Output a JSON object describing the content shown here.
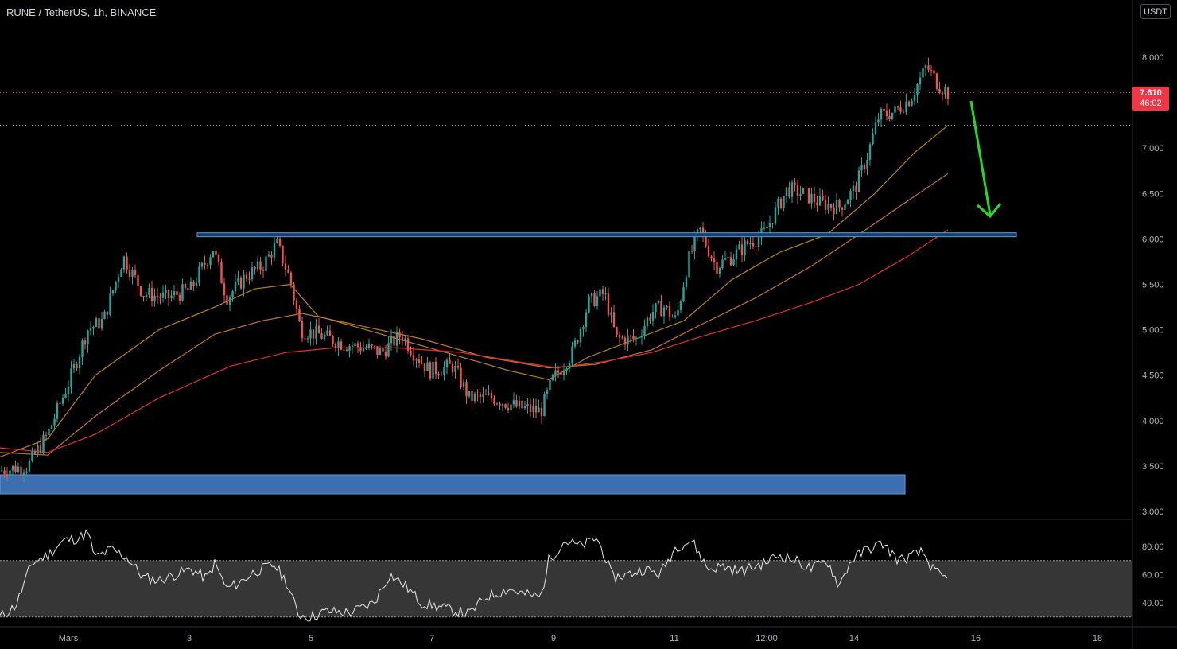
{
  "header": {
    "symbol_title": "RUNE / TetherUS, 1h, BINANCE"
  },
  "currency_badge": "USDT",
  "last_price": {
    "price": "7.610",
    "countdown": "46:02",
    "color": "#f23645"
  },
  "colors": {
    "background": "#000000",
    "up": "#26a69a",
    "down": "#ef5350",
    "ma_fast": "#b8860b",
    "ma_mid": "#c0792a",
    "ma_slow": "#e03030",
    "zone": "#3d6fb0",
    "resistance": "#5b9bd5",
    "arrow": "#22dd22",
    "rsi_band": "#363636"
  },
  "chart_data": [
    {
      "type": "candlestick",
      "title": "RUNE / TetherUS, 1h, BINANCE",
      "x_tick_labels": [
        "Mars",
        "3",
        "5",
        "7",
        "9",
        "11",
        "12:00",
        "14",
        "16",
        "18"
      ],
      "y_tick_labels": [
        "8.000",
        "7.500",
        "7.000",
        "6.500",
        "6.000",
        "5.500",
        "5.000",
        "4.500",
        "4.000",
        "3.500",
        "3.000"
      ],
      "ylim": [
        3.0,
        8.0
      ],
      "price_path": [
        [
          0,
          3.45
        ],
        [
          35,
          3.5
        ],
        [
          60,
          3.85
        ],
        [
          90,
          4.5
        ],
        [
          110,
          5.0
        ],
        [
          130,
          5.1
        ],
        [
          155,
          5.8
        ],
        [
          180,
          5.4
        ],
        [
          210,
          5.35
        ],
        [
          240,
          5.45
        ],
        [
          268,
          5.9
        ],
        [
          285,
          5.35
        ],
        [
          310,
          5.6
        ],
        [
          330,
          5.7
        ],
        [
          348,
          5.95
        ],
        [
          365,
          5.55
        ],
        [
          378,
          5.0
        ],
        [
          400,
          4.95
        ],
        [
          430,
          4.85
        ],
        [
          460,
          4.8
        ],
        [
          480,
          4.75
        ],
        [
          505,
          4.95
        ],
        [
          520,
          4.75
        ],
        [
          540,
          4.55
        ],
        [
          570,
          4.6
        ],
        [
          590,
          4.25
        ],
        [
          620,
          4.25
        ],
        [
          650,
          4.15
        ],
        [
          680,
          4.1
        ],
        [
          695,
          4.45
        ],
        [
          720,
          4.75
        ],
        [
          740,
          5.3
        ],
        [
          760,
          5.4
        ],
        [
          775,
          4.9
        ],
        [
          800,
          4.9
        ],
        [
          820,
          5.2
        ],
        [
          835,
          5.25
        ],
        [
          850,
          5.1
        ],
        [
          865,
          5.75
        ],
        [
          880,
          6.1
        ],
        [
          900,
          5.7
        ],
        [
          920,
          5.8
        ],
        [
          940,
          5.95
        ],
        [
          960,
          6.05
        ],
        [
          975,
          6.3
        ],
        [
          990,
          6.55
        ],
        [
          1010,
          6.5
        ],
        [
          1030,
          6.4
        ],
        [
          1055,
          6.35
        ],
        [
          1075,
          6.55
        ],
        [
          1090,
          6.9
        ],
        [
          1105,
          7.35
        ],
        [
          1125,
          7.4
        ],
        [
          1145,
          7.55
        ],
        [
          1165,
          7.9
        ],
        [
          1180,
          7.7
        ],
        [
          1192,
          7.61
        ]
      ],
      "moving_averages": [
        {
          "name": "MA fast",
          "color": "#b8860b",
          "points": [
            [
              0,
              3.6
            ],
            [
              60,
              3.8
            ],
            [
              120,
              4.5
            ],
            [
              200,
              5.0
            ],
            [
              270,
              5.25
            ],
            [
              320,
              5.45
            ],
            [
              365,
              5.5
            ],
            [
              400,
              5.15
            ],
            [
              480,
              4.95
            ],
            [
              560,
              4.75
            ],
            [
              640,
              4.55
            ],
            [
              690,
              4.45
            ],
            [
              740,
              4.7
            ],
            [
              800,
              4.9
            ],
            [
              860,
              5.1
            ],
            [
              920,
              5.55
            ],
            [
              980,
              5.85
            ],
            [
              1040,
              6.05
            ],
            [
              1100,
              6.5
            ],
            [
              1150,
              6.95
            ],
            [
              1192,
              7.25
            ]
          ]
        },
        {
          "name": "MA mid",
          "color": "#c0792a",
          "points": [
            [
              0,
              3.65
            ],
            [
              60,
              3.62
            ],
            [
              120,
              4.05
            ],
            [
              200,
              4.55
            ],
            [
              270,
              4.95
            ],
            [
              330,
              5.1
            ],
            [
              380,
              5.18
            ],
            [
              450,
              5.05
            ],
            [
              530,
              4.9
            ],
            [
              610,
              4.7
            ],
            [
              690,
              4.58
            ],
            [
              750,
              4.62
            ],
            [
              820,
              4.78
            ],
            [
              880,
              5.05
            ],
            [
              950,
              5.35
            ],
            [
              1020,
              5.7
            ],
            [
              1080,
              6.05
            ],
            [
              1130,
              6.35
            ],
            [
              1192,
              6.72
            ]
          ]
        },
        {
          "name": "MA slow",
          "color": "#e03030",
          "points": [
            [
              0,
              3.7
            ],
            [
              60,
              3.65
            ],
            [
              120,
              3.85
            ],
            [
              200,
              4.25
            ],
            [
              290,
              4.6
            ],
            [
              360,
              4.75
            ],
            [
              420,
              4.8
            ],
            [
              500,
              4.8
            ],
            [
              580,
              4.75
            ],
            [
              650,
              4.65
            ],
            [
              700,
              4.58
            ],
            [
              760,
              4.65
            ],
            [
              820,
              4.75
            ],
            [
              880,
              4.92
            ],
            [
              950,
              5.1
            ],
            [
              1020,
              5.3
            ],
            [
              1080,
              5.5
            ],
            [
              1140,
              5.8
            ],
            [
              1192,
              6.1
            ]
          ]
        }
      ],
      "resistance_level": 6.05,
      "support_zone": [
        3.2,
        3.4
      ],
      "last_price_level": 7.61,
      "secondary_level": 7.25
    },
    {
      "type": "line",
      "title": "",
      "y_tick_labels": [
        "80.00",
        "60.00",
        "40.00"
      ],
      "ylim": [
        25,
        95
      ],
      "band": [
        30,
        70
      ],
      "values_path": [
        [
          0,
          30
        ],
        [
          20,
          38
        ],
        [
          40,
          68
        ],
        [
          60,
          74
        ],
        [
          80,
          84
        ],
        [
          100,
          86
        ],
        [
          110,
          90
        ],
        [
          120,
          72
        ],
        [
          140,
          78
        ],
        [
          160,
          72
        ],
        [
          180,
          58
        ],
        [
          200,
          56
        ],
        [
          220,
          60
        ],
        [
          240,
          64
        ],
        [
          260,
          57
        ],
        [
          270,
          68
        ],
        [
          285,
          50
        ],
        [
          300,
          54
        ],
        [
          320,
          62
        ],
        [
          345,
          67
        ],
        [
          360,
          55
        ],
        [
          375,
          32
        ],
        [
          390,
          30
        ],
        [
          410,
          34
        ],
        [
          440,
          33
        ],
        [
          470,
          40
        ],
        [
          490,
          60
        ],
        [
          510,
          52
        ],
        [
          530,
          40
        ],
        [
          560,
          36
        ],
        [
          590,
          32
        ],
        [
          610,
          44
        ],
        [
          640,
          50
        ],
        [
          660,
          46
        ],
        [
          680,
          44
        ],
        [
          690,
          70
        ],
        [
          710,
          84
        ],
        [
          730,
          80
        ],
        [
          750,
          86
        ],
        [
          760,
          74
        ],
        [
          770,
          58
        ],
        [
          790,
          60
        ],
        [
          810,
          64
        ],
        [
          830,
          60
        ],
        [
          850,
          80
        ],
        [
          870,
          84
        ],
        [
          890,
          64
        ],
        [
          910,
          66
        ],
        [
          930,
          62
        ],
        [
          960,
          68
        ],
        [
          980,
          74
        ],
        [
          1000,
          70
        ],
        [
          1020,
          64
        ],
        [
          1040,
          70
        ],
        [
          1055,
          52
        ],
        [
          1070,
          70
        ],
        [
          1090,
          78
        ],
        [
          1110,
          82
        ],
        [
          1130,
          70
        ],
        [
          1150,
          74
        ],
        [
          1160,
          76
        ],
        [
          1175,
          62
        ],
        [
          1192,
          56
        ]
      ]
    }
  ]
}
